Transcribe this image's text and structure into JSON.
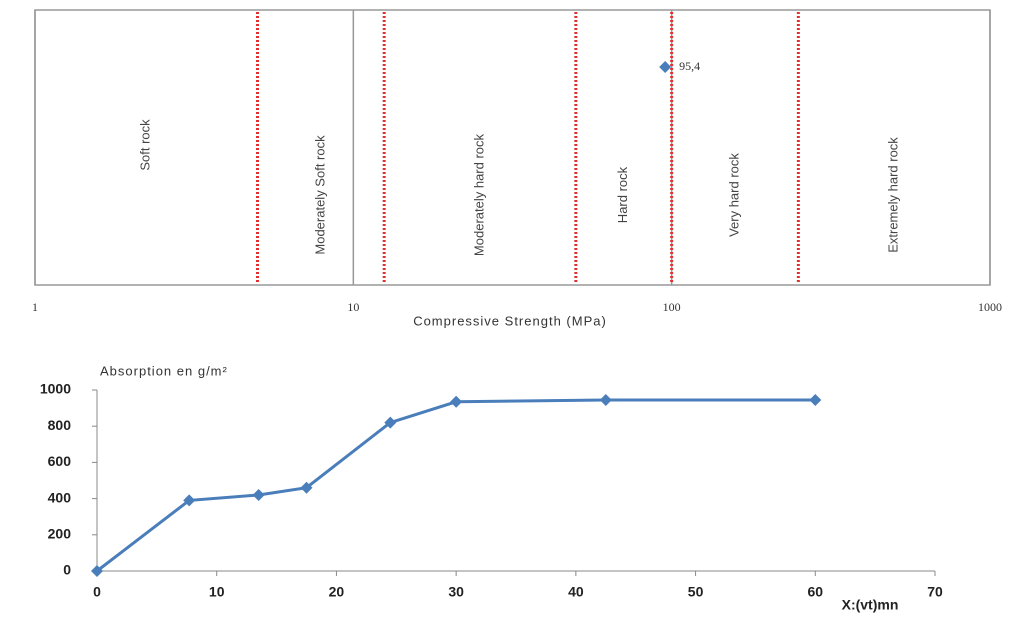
{
  "chart_data": [
    {
      "type": "strip",
      "xlabel": "Compressive Strength (MPa)",
      "xlim": [
        1,
        1000
      ],
      "xticks": [
        1,
        10,
        100,
        1000
      ],
      "log_x": true,
      "grid": true,
      "values": [
        95.4
      ],
      "value_labels": [
        "95,4"
      ],
      "color": "#4a7ebb",
      "boundaries": [
        5,
        12.5,
        50,
        100,
        250
      ],
      "boundary_color": "#e03030",
      "zones": [
        "Soft rock",
        "Moderately Soft rock",
        "Moderately hard rock",
        "Hard rock",
        "Very hard rock",
        "Extremely hard rock"
      ]
    },
    {
      "type": "line",
      "ylabel": "Absorption en g/m²",
      "xlabel": "X:(vt)mn",
      "x": [
        0,
        7.7,
        13.5,
        17.5,
        24.5,
        30,
        42.5,
        60
      ],
      "values": [
        0,
        390,
        420,
        460,
        820,
        935,
        945,
        945
      ],
      "color": "#4a7ebb",
      "xlim": [
        0,
        70
      ],
      "xticks": [
        0,
        10,
        20,
        30,
        40,
        50,
        60,
        70
      ],
      "ylim": [
        0,
        1000
      ],
      "yticks": [
        0,
        200,
        400,
        600,
        800,
        1000
      ],
      "grid": false
    }
  ]
}
